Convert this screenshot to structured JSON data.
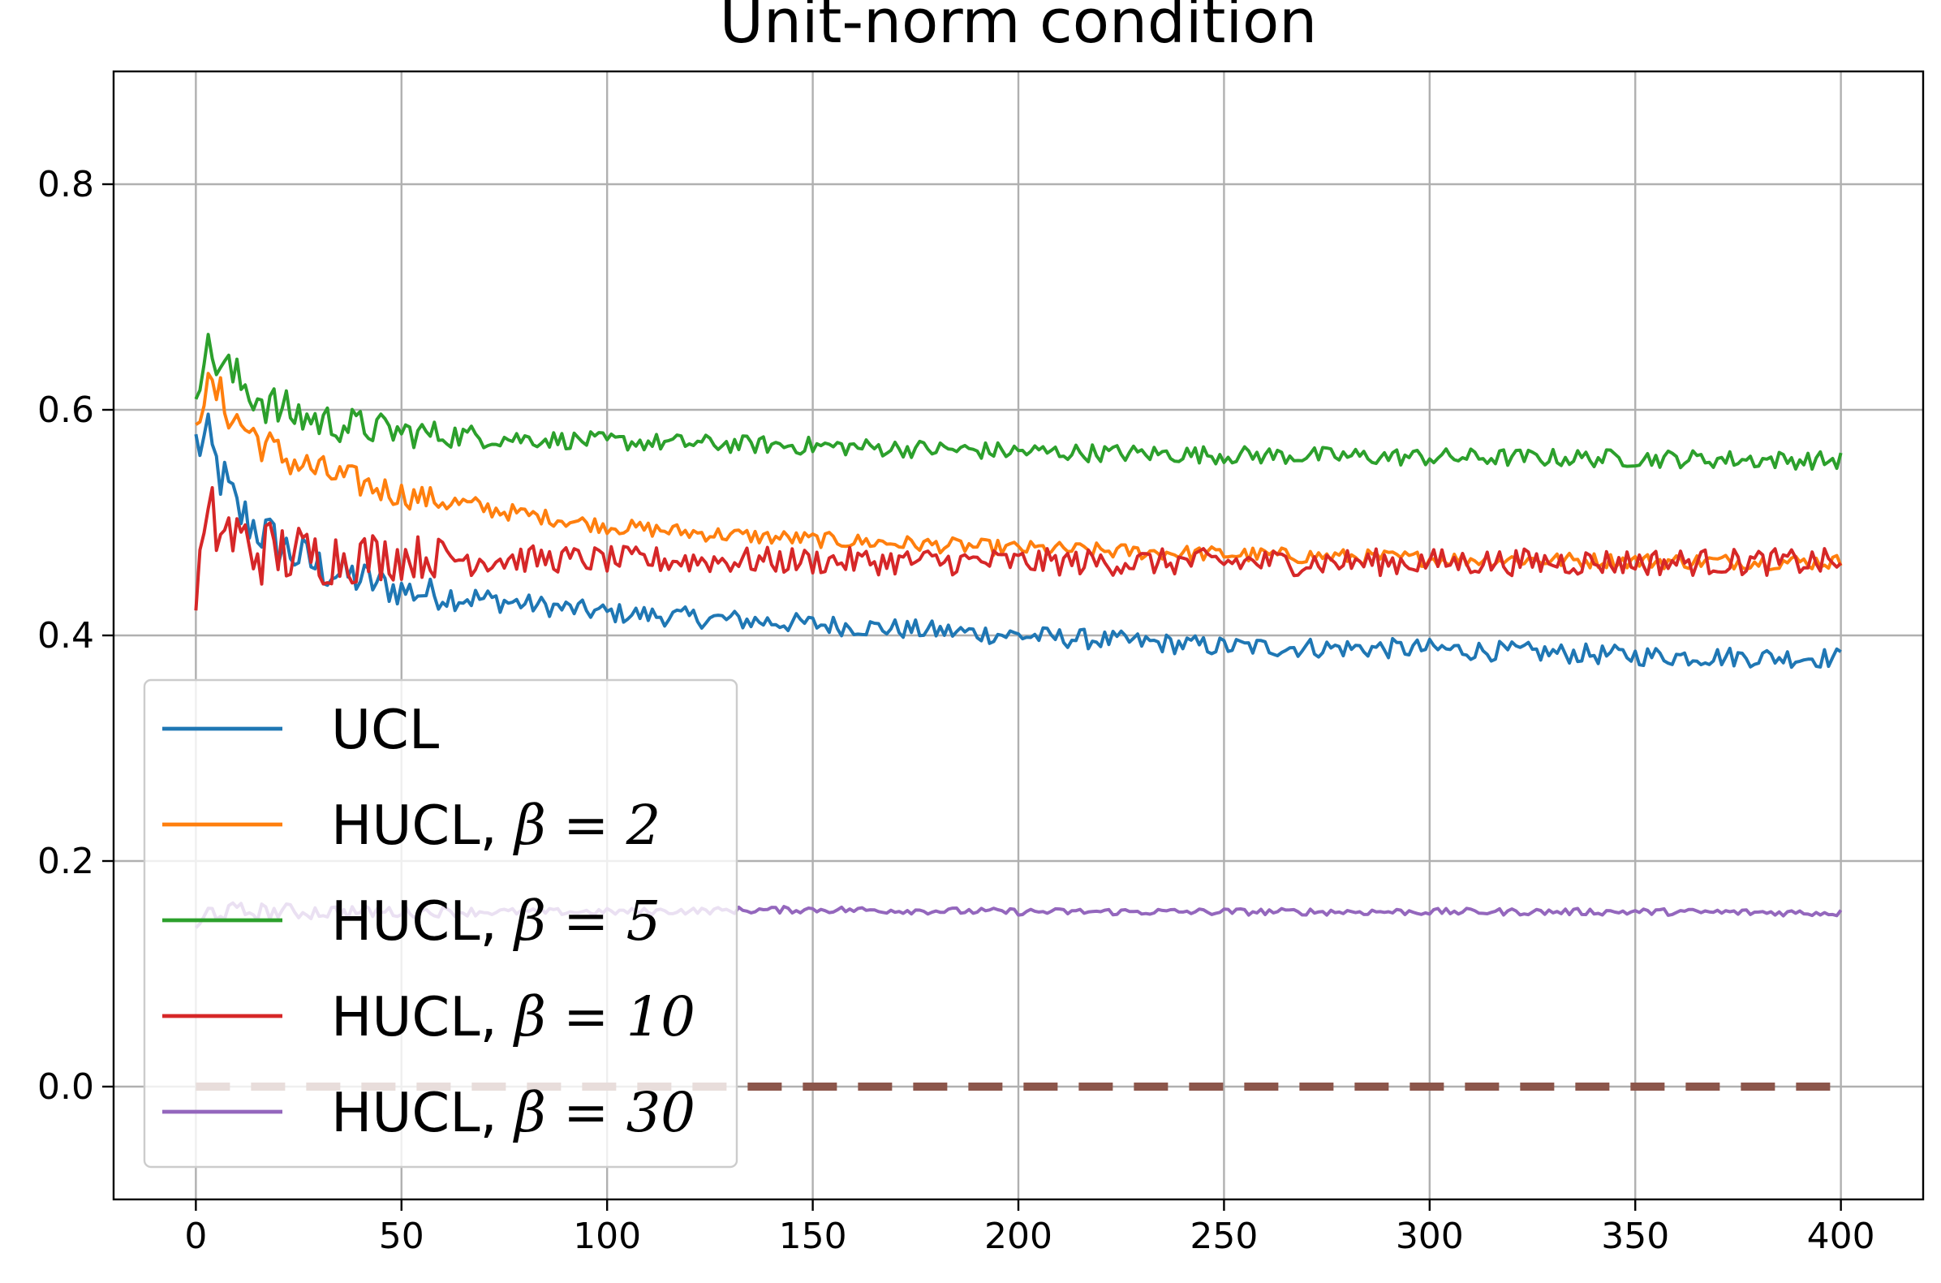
{
  "chart_data": {
    "type": "line",
    "title": "Unit-norm condition",
    "xlabel": "",
    "ylabel": "",
    "xlim": [
      -20,
      420
    ],
    "ylim": [
      -0.1,
      0.9
    ],
    "x_ticks": [
      0,
      50,
      100,
      150,
      200,
      250,
      300,
      350,
      400
    ],
    "y_ticks": [
      0.0,
      0.2,
      0.4,
      0.6,
      0.8
    ],
    "x_tick_labels": [
      "0",
      "50",
      "100",
      "150",
      "200",
      "250",
      "300",
      "350",
      "400"
    ],
    "y_tick_labels": [
      "0.0",
      "0.2",
      "0.4",
      "0.6",
      "0.8"
    ],
    "grid": true,
    "legend_position": "lower-left",
    "series": [
      {
        "name": "UCL",
        "color": "#1f77b4",
        "points": [
          [
            0,
            0.57
          ],
          [
            3,
            0.57
          ],
          [
            5,
            0.55
          ],
          [
            10,
            0.51
          ],
          [
            20,
            0.48
          ],
          [
            30,
            0.46
          ],
          [
            50,
            0.44
          ],
          [
            75,
            0.43
          ],
          [
            100,
            0.42
          ],
          [
            125,
            0.415
          ],
          [
            150,
            0.41
          ],
          [
            200,
            0.4
          ],
          [
            250,
            0.39
          ],
          [
            300,
            0.388
          ],
          [
            350,
            0.382
          ],
          [
            400,
            0.38
          ]
        ]
      },
      {
        "name": "HUCL, β = 2",
        "color": "#ff7f0e",
        "points": [
          [
            0,
            0.6
          ],
          [
            2,
            0.615
          ],
          [
            5,
            0.615
          ],
          [
            10,
            0.59
          ],
          [
            20,
            0.56
          ],
          [
            30,
            0.545
          ],
          [
            50,
            0.525
          ],
          [
            75,
            0.51
          ],
          [
            100,
            0.497
          ],
          [
            125,
            0.49
          ],
          [
            150,
            0.485
          ],
          [
            200,
            0.477
          ],
          [
            250,
            0.472
          ],
          [
            300,
            0.468
          ],
          [
            350,
            0.466
          ],
          [
            400,
            0.465
          ]
        ]
      },
      {
        "name": "HUCL, β = 5",
        "color": "#2ca02c",
        "points": [
          [
            0,
            0.63
          ],
          [
            2,
            0.65
          ],
          [
            5,
            0.645
          ],
          [
            10,
            0.625
          ],
          [
            20,
            0.6
          ],
          [
            30,
            0.59
          ],
          [
            50,
            0.58
          ],
          [
            75,
            0.575
          ],
          [
            100,
            0.572
          ],
          [
            125,
            0.57
          ],
          [
            150,
            0.568
          ],
          [
            200,
            0.563
          ],
          [
            250,
            0.56
          ],
          [
            300,
            0.558
          ],
          [
            350,
            0.557
          ],
          [
            400,
            0.555
          ]
        ]
      },
      {
        "name": "HUCL, β = 10",
        "color": "#d62728",
        "points": [
          [
            0,
            0.44
          ],
          [
            2,
            0.48
          ],
          [
            4,
            0.5
          ],
          [
            8,
            0.49
          ],
          [
            15,
            0.475
          ],
          [
            30,
            0.47
          ],
          [
            50,
            0.47
          ],
          [
            75,
            0.468
          ],
          [
            100,
            0.467
          ],
          [
            150,
            0.466
          ],
          [
            200,
            0.465
          ],
          [
            250,
            0.465
          ],
          [
            300,
            0.465
          ],
          [
            350,
            0.465
          ],
          [
            400,
            0.465
          ]
        ]
      },
      {
        "name": "HUCL, β = 30",
        "color": "#9467bd",
        "points": [
          [
            0,
            0.135
          ],
          [
            3,
            0.155
          ],
          [
            10,
            0.155
          ],
          [
            50,
            0.155
          ],
          [
            100,
            0.155
          ],
          [
            150,
            0.157
          ],
          [
            200,
            0.155
          ],
          [
            250,
            0.155
          ],
          [
            300,
            0.155
          ],
          [
            350,
            0.155
          ],
          [
            400,
            0.154
          ]
        ]
      },
      {
        "name": "",
        "color": "#8c564b",
        "style": "dashed",
        "points": [
          [
            0,
            0.0
          ],
          [
            400,
            0.0
          ]
        ]
      }
    ]
  },
  "legend": {
    "entries": [
      {
        "label": "UCL",
        "prefix": "",
        "math": ""
      },
      {
        "label": "",
        "prefix": "HUCL, ",
        "math": "β = 2"
      },
      {
        "label": "",
        "prefix": "HUCL, ",
        "math": "β = 5"
      },
      {
        "label": "",
        "prefix": "HUCL, ",
        "math": "β = 10"
      },
      {
        "label": "",
        "prefix": "HUCL, ",
        "math": "β = 30"
      }
    ]
  }
}
